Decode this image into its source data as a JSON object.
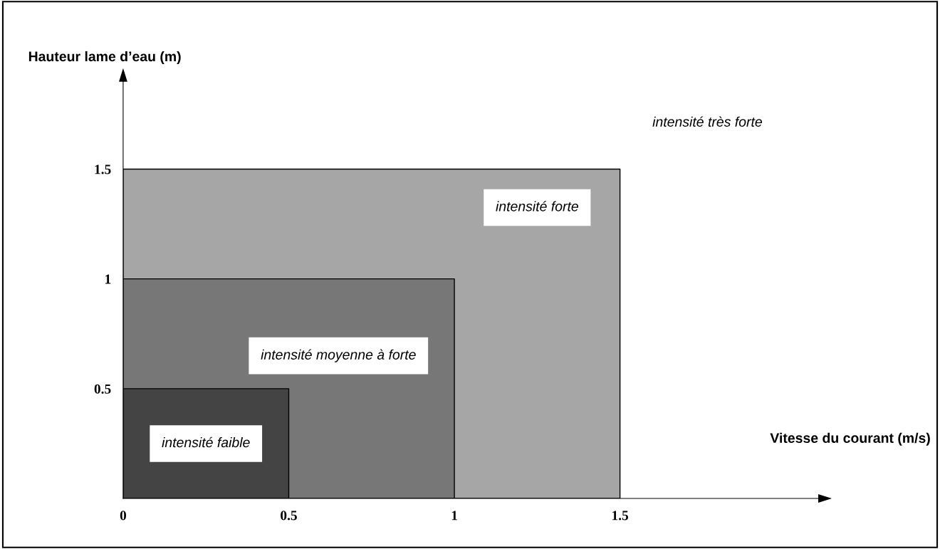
{
  "chart_data": {
    "type": "area",
    "xlabel": "Vitesse du courant (m/s)",
    "ylabel": "Hauteur lame d’eau (m)",
    "series": [
      {
        "name": "intensité forte",
        "color": "#a6a6a6",
        "x": [
          0,
          1.5
        ],
        "values": [
          1.5,
          1.5
        ]
      },
      {
        "name": "intensité moyenne à forte",
        "color": "#777777",
        "x": [
          0,
          1
        ],
        "values": [
          1,
          1
        ]
      },
      {
        "name": "intensité faible",
        "color": "#444444",
        "x": [
          0,
          0.5
        ],
        "values": [
          0.5,
          0.5
        ]
      }
    ],
    "annotations": [
      "intensité très forte"
    ],
    "xlim": [
      0,
      2.1
    ],
    "ylim": [
      0,
      1.9
    ],
    "xticks": [
      0,
      0.5,
      1,
      1.5
    ],
    "yticks": [
      0.5,
      1,
      1.5
    ],
    "grid": false,
    "legend": false
  }
}
